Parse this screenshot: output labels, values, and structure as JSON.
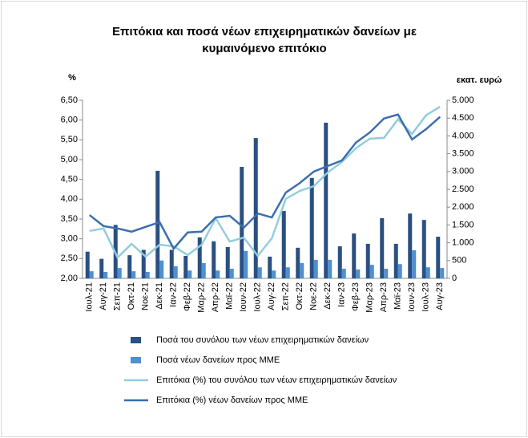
{
  "chart_data": {
    "type": "bar",
    "title": [
      "Επιτόκια και ποσά νέων επιχειρηματικών δανείων με",
      "κυμαινόμενο επιτόκιο"
    ],
    "y_label": "%",
    "y2_label": "εκατ. ευρώ",
    "categories": [
      "Ιουλ-21",
      "Αυγ-21",
      "Σεπ-21",
      "Οκτ-21",
      "Νοε-21",
      "Δεκ-21",
      "Ιαν-22",
      "Φεβ-22",
      "Μαρ-22",
      "Απρ-22",
      "Μαϊ-22",
      "Ιουν-22",
      "Ιουλ-22",
      "Αυγ-22",
      "Σεπ-22",
      "Οκτ-22",
      "Νοε-22",
      "Δεκ-22",
      "Ιαν-23",
      "Φεβ-23",
      "Μαρ-23",
      "Απρ-23",
      "Μαϊ-23",
      "Ιουν-23",
      "Ιουλ-23",
      "Αυγ-23"
    ],
    "series": [
      {
        "name": "Ποσά του συνόλου των νέων επιχειρηματικών δανείων",
        "type": "bar",
        "axis": "y2",
        "color": "#2b4f80",
        "values": [
          750,
          550,
          1500,
          650,
          800,
          3020,
          800,
          630,
          1150,
          1040,
          880,
          3130,
          3940,
          610,
          1890,
          860,
          2820,
          4370,
          900,
          1260,
          970,
          1690,
          970,
          1820,
          1640,
          1170
        ]
      },
      {
        "name": "Ποσά νέων δανείων προς ΜΜΕ",
        "type": "bar",
        "axis": "y2",
        "color": "#4f8fd0",
        "values": [
          200,
          180,
          290,
          200,
          180,
          500,
          340,
          220,
          430,
          220,
          270,
          770,
          310,
          220,
          310,
          430,
          520,
          520,
          270,
          250,
          380,
          270,
          400,
          790,
          310,
          290
        ]
      },
      {
        "name": "Επιτόκια (%) του συνόλου των νέων επιχειρηματικών δανείων",
        "type": "line",
        "axis": "y",
        "color": "#93cddd",
        "values": [
          3.2,
          3.26,
          2.53,
          2.87,
          2.55,
          2.85,
          2.81,
          2.59,
          2.85,
          3.52,
          2.93,
          3.03,
          2.57,
          3.01,
          4.01,
          4.21,
          4.33,
          4.68,
          4.94,
          5.29,
          5.53,
          5.55,
          6.02,
          5.65,
          6.12,
          6.34
        ]
      },
      {
        "name": "Επιτόκια (%) νέων δανείων προς ΜΜΕ",
        "type": "line",
        "axis": "y",
        "color": "#3b6eaf",
        "values": [
          3.6,
          3.32,
          3.26,
          3.18,
          3.3,
          3.42,
          2.75,
          3.16,
          3.18,
          3.54,
          3.58,
          3.28,
          3.64,
          3.54,
          4.17,
          4.41,
          4.7,
          4.84,
          4.98,
          5.43,
          5.69,
          6.04,
          6.14,
          5.51,
          5.77,
          6.08
        ]
      }
    ],
    "ylim": [
      2,
      6.5
    ],
    "yticks": [
      {
        "value": 2,
        "label": "2,00"
      },
      {
        "value": 2.5,
        "label": "2,50"
      },
      {
        "value": 3,
        "label": "3,00"
      },
      {
        "value": 3.5,
        "label": "3,50"
      },
      {
        "value": 4,
        "label": "4,00"
      },
      {
        "value": 4.5,
        "label": "4,50"
      },
      {
        "value": 5,
        "label": "5,00"
      },
      {
        "value": 5.5,
        "label": "5,50"
      },
      {
        "value": 6,
        "label": "6,00"
      },
      {
        "value": 6.5,
        "label": "6,50"
      }
    ],
    "y2lim": [
      0,
      5000
    ],
    "y2ticks": [
      0,
      500,
      {
        "value": 1000,
        "label": "1.000"
      },
      {
        "value": 1500,
        "label": "1.500"
      },
      {
        "value": 2000,
        "label": "2.000"
      },
      {
        "value": 2500,
        "label": "2.500"
      },
      {
        "value": 3000,
        "label": "3.000"
      },
      {
        "value": 3500,
        "label": "3.500"
      },
      {
        "value": 4000,
        "label": "4.000"
      },
      {
        "value": 4500,
        "label": "4.500"
      },
      {
        "value": 5000,
        "label": "5.000"
      }
    ],
    "grid": false,
    "legend": "bottom"
  }
}
